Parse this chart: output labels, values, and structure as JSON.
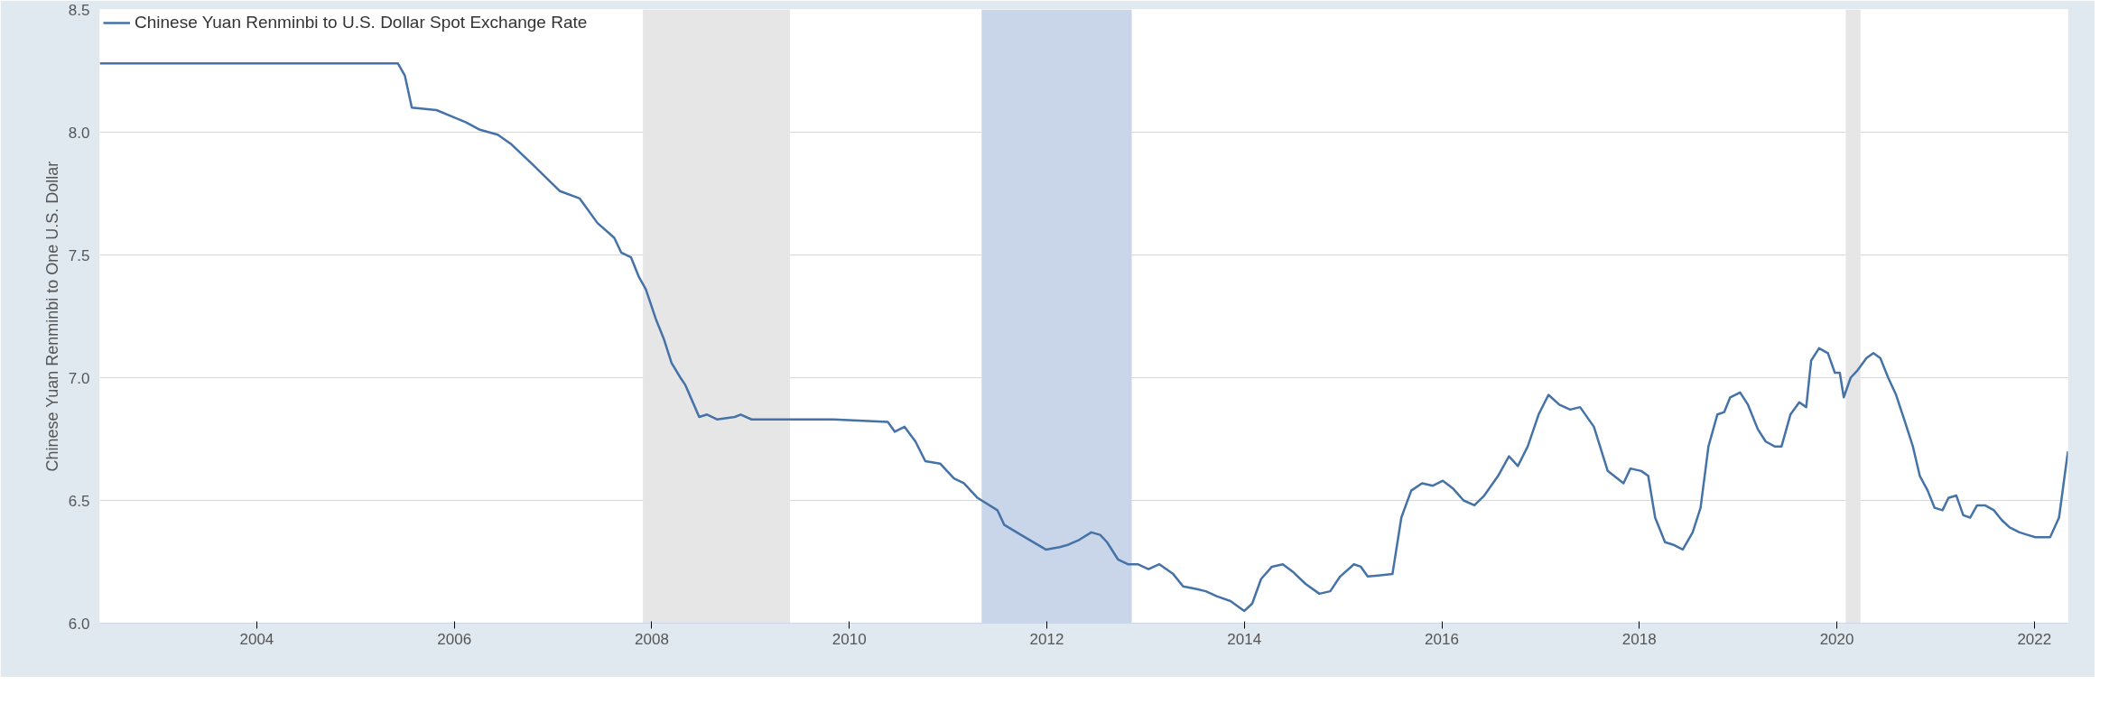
{
  "chart_data": {
    "type": "line",
    "ylabel": "Chinese Yuan Renminbi to One U.S. Dollar",
    "xlim": [
      2002.41,
      2022.34
    ],
    "xticks": [
      2004,
      2006,
      2008,
      2010,
      2012,
      2014,
      2016,
      2018,
      2020,
      2022
    ],
    "ylim": [
      6.0,
      8.5
    ],
    "yticks": [
      {
        "value": 6.0,
        "label": "6.0"
      },
      {
        "value": 6.5,
        "label": "6.5"
      },
      {
        "value": 7.0,
        "label": "7.0"
      },
      {
        "value": 7.5,
        "label": "7.5"
      },
      {
        "value": 8.0,
        "label": "8.0"
      },
      {
        "value": 8.5,
        "label": "8.5"
      }
    ],
    "grid": "y",
    "legend": "top left",
    "line_style": "solid",
    "marker": "none",
    "bands": [
      {
        "axis": "x",
        "from": 2007.91,
        "to": 2009.4,
        "label": null,
        "color": "#e6e6e6"
      },
      {
        "axis": "x",
        "from": 2011.34,
        "to": 2012.86,
        "label": null,
        "color": "#c9d5e8"
      },
      {
        "axis": "x",
        "from": 2020.09,
        "to": 2020.24,
        "label": null,
        "color": "#e6e6e6"
      }
    ],
    "series": [
      {
        "name": "Chinese Yuan Renminbi to U.S. Dollar Spot Exchange Rate",
        "color": "#4572a7",
        "x": [
          2002.41,
          2005.43,
          2005.5,
          2005.57,
          2005.82,
          2006.12,
          2006.26,
          2006.44,
          2006.58,
          2006.79,
          2007.07,
          2007.27,
          2007.45,
          2007.62,
          2007.69,
          2007.79,
          2007.87,
          2007.94,
          2008.04,
          2008.12,
          2008.2,
          2008.29,
          2008.34,
          2008.48,
          2008.56,
          2008.66,
          2008.84,
          2008.9,
          2009.01,
          2009.28,
          2009.84,
          2010.39,
          2010.46,
          2010.56,
          2010.67,
          2010.77,
          2010.92,
          2011.06,
          2011.16,
          2011.3,
          2011.5,
          2011.57,
          2011.78,
          2011.99,
          2012.13,
          2012.22,
          2012.33,
          2012.45,
          2012.54,
          2012.61,
          2012.72,
          2012.82,
          2012.92,
          2013.03,
          2013.14,
          2013.28,
          2013.38,
          2013.51,
          2013.61,
          2013.72,
          2013.86,
          2014.0,
          2014.08,
          2014.17,
          2014.28,
          2014.39,
          2014.49,
          2014.62,
          2014.76,
          2014.87,
          2014.97,
          2015.11,
          2015.18,
          2015.25,
          2015.5,
          2015.59,
          2015.69,
          2015.8,
          2015.91,
          2016.01,
          2016.11,
          2016.22,
          2016.33,
          2016.43,
          2016.57,
          2016.68,
          2016.77,
          2016.87,
          2016.98,
          2017.08,
          2017.19,
          2017.3,
          2017.4,
          2017.54,
          2017.68,
          2017.84,
          2017.91,
          2018.02,
          2018.09,
          2018.16,
          2018.26,
          2018.34,
          2018.44,
          2018.54,
          2018.62,
          2018.7,
          2018.79,
          2018.86,
          2018.92,
          2019.02,
          2019.1,
          2019.2,
          2019.28,
          2019.37,
          2019.44,
          2019.53,
          2019.62,
          2019.69,
          2019.74,
          2019.82,
          2019.91,
          2019.98,
          2020.03,
          2020.07,
          2020.14,
          2020.21,
          2020.3,
          2020.37,
          2020.44,
          2020.52,
          2020.6,
          2020.69,
          2020.77,
          2020.84,
          2020.92,
          2020.99,
          2021.07,
          2021.13,
          2021.21,
          2021.28,
          2021.35,
          2021.42,
          2021.5,
          2021.59,
          2021.67,
          2021.75,
          2021.85,
          2021.93,
          2022.01,
          2022.16,
          2022.25,
          2022.34
        ],
        "values": [
          8.28,
          8.28,
          8.23,
          8.1,
          8.09,
          8.04,
          8.01,
          7.99,
          7.95,
          7.87,
          7.76,
          7.73,
          7.63,
          7.57,
          7.51,
          7.49,
          7.41,
          7.36,
          7.24,
          7.16,
          7.06,
          7.0,
          6.97,
          6.84,
          6.85,
          6.83,
          6.84,
          6.85,
          6.83,
          6.83,
          6.83,
          6.82,
          6.78,
          6.8,
          6.74,
          6.66,
          6.65,
          6.59,
          6.57,
          6.51,
          6.46,
          6.4,
          6.35,
          6.3,
          6.31,
          6.32,
          6.34,
          6.37,
          6.36,
          6.33,
          6.26,
          6.24,
          6.24,
          6.22,
          6.24,
          6.2,
          6.15,
          6.14,
          6.13,
          6.11,
          6.09,
          6.05,
          6.08,
          6.18,
          6.23,
          6.24,
          6.21,
          6.16,
          6.12,
          6.13,
          6.19,
          6.24,
          6.23,
          6.19,
          6.2,
          6.43,
          6.54,
          6.57,
          6.56,
          6.58,
          6.55,
          6.5,
          6.48,
          6.52,
          6.6,
          6.68,
          6.64,
          6.72,
          6.85,
          6.93,
          6.89,
          6.87,
          6.88,
          6.8,
          6.62,
          6.57,
          6.63,
          6.62,
          6.6,
          6.43,
          6.33,
          6.32,
          6.3,
          6.37,
          6.47,
          6.72,
          6.85,
          6.86,
          6.92,
          6.94,
          6.89,
          6.79,
          6.74,
          6.72,
          6.72,
          6.85,
          6.9,
          6.88,
          7.07,
          7.12,
          7.1,
          7.02,
          7.02,
          6.92,
          7.0,
          7.03,
          7.08,
          7.1,
          7.08,
          7.0,
          6.93,
          6.82,
          6.72,
          6.6,
          6.54,
          6.47,
          6.46,
          6.51,
          6.52,
          6.44,
          6.43,
          6.48,
          6.48,
          6.46,
          6.42,
          6.39,
          6.37,
          6.36,
          6.35,
          6.35,
          6.43,
          6.7
        ]
      }
    ]
  }
}
